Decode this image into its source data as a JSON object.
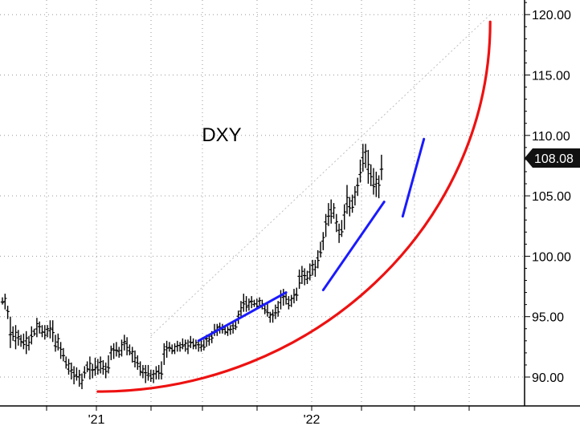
{
  "chart_data": {
    "type": "ohlc",
    "title": "DXY",
    "ylim": [
      88,
      121
    ],
    "y_ticks": [
      "90.00",
      "95.00",
      "100.00",
      "105.00",
      "110.00",
      "115.00",
      "120.00"
    ],
    "x_ticks": [
      "'21",
      "'22"
    ],
    "last_price": 108.08,
    "last_price_label": "108.08",
    "grid": true,
    "series": [
      {
        "bars": [
          [
            96.6,
            96.0
          ],
          [
            96.9,
            95.6
          ],
          [
            95.9,
            94.8
          ],
          [
            95.0,
            92.4
          ],
          [
            94.2,
            93.0
          ],
          [
            94.3,
            92.3
          ],
          [
            93.9,
            92.6
          ],
          [
            93.5,
            92.5
          ],
          [
            93.6,
            92.3
          ],
          [
            93.8,
            91.9
          ],
          [
            93.4,
            92.2
          ],
          [
            94.2,
            92.7
          ],
          [
            94.0,
            93.4
          ],
          [
            94.9,
            93.3
          ],
          [
            94.6,
            93.6
          ],
          [
            94.3,
            93.3
          ],
          [
            94.3,
            93.1
          ],
          [
            94.3,
            93.3
          ],
          [
            94.7,
            93.2
          ],
          [
            94.7,
            92.9
          ],
          [
            93.5,
            92.1
          ],
          [
            93.6,
            92.2
          ],
          [
            92.9,
            91.5
          ],
          [
            92.4,
            91.3
          ],
          [
            91.7,
            90.7
          ],
          [
            91.5,
            90.2
          ],
          [
            91.2,
            89.8
          ],
          [
            90.9,
            89.4
          ],
          [
            90.8,
            89.7
          ],
          [
            90.6,
            89.2
          ],
          [
            90.3,
            89.0
          ],
          [
            90.9,
            89.9
          ],
          [
            91.3,
            90.4
          ],
          [
            91.7,
            89.8
          ],
          [
            91.1,
            89.9
          ],
          [
            91.6,
            90.1
          ],
          [
            91.5,
            90.2
          ],
          [
            91.7,
            90.3
          ],
          [
            91.4,
            90.2
          ],
          [
            91.2,
            89.9
          ],
          [
            91.8,
            90.3
          ],
          [
            92.6,
            91.4
          ],
          [
            92.8,
            91.5
          ],
          [
            92.9,
            91.7
          ],
          [
            92.5,
            91.6
          ],
          [
            93.1,
            91.7
          ],
          [
            93.5,
            92.2
          ],
          [
            93.3,
            91.8
          ],
          [
            92.7,
            91.8
          ],
          [
            92.5,
            91.2
          ],
          [
            92.2,
            90.8
          ],
          [
            91.8,
            90.6
          ],
          [
            91.3,
            90.1
          ],
          [
            91.0,
            89.9
          ],
          [
            91.0,
            89.5
          ],
          [
            91.0,
            89.7
          ],
          [
            90.6,
            89.6
          ],
          [
            90.6,
            89.5
          ],
          [
            90.9,
            89.8
          ],
          [
            91.0,
            89.8
          ],
          [
            91.3,
            89.8
          ],
          [
            92.8,
            91.0
          ],
          [
            93.0,
            91.6
          ],
          [
            92.9,
            92.1
          ],
          [
            92.7,
            91.9
          ],
          [
            92.8,
            91.9
          ],
          [
            93.0,
            92.1
          ],
          [
            92.9,
            92.1
          ],
          [
            93.2,
            92.3
          ],
          [
            93.1,
            92.1
          ],
          [
            93.1,
            91.9
          ],
          [
            93.4,
            92.4
          ],
          [
            93.2,
            92.3
          ],
          [
            93.1,
            92.3
          ],
          [
            93.1,
            92.1
          ],
          [
            93.1,
            92.1
          ],
          [
            93.1,
            92.2
          ],
          [
            93.5,
            92.5
          ],
          [
            93.5,
            92.6
          ],
          [
            93.8,
            92.8
          ],
          [
            94.4,
            93.4
          ],
          [
            94.4,
            93.4
          ],
          [
            94.5,
            93.6
          ],
          [
            94.4,
            93.6
          ],
          [
            94.3,
            93.5
          ],
          [
            94.2,
            93.4
          ],
          [
            94.3,
            93.5
          ],
          [
            94.6,
            93.6
          ],
          [
            94.7,
            93.9
          ],
          [
            95.5,
            94.4
          ],
          [
            96.3,
            95.0
          ],
          [
            96.9,
            95.4
          ],
          [
            96.7,
            95.4
          ],
          [
            96.5,
            95.5
          ],
          [
            96.7,
            95.7
          ],
          [
            96.4,
            95.8
          ],
          [
            96.5,
            95.6
          ],
          [
            96.6,
            95.7
          ],
          [
            96.4,
            95.6
          ],
          [
            96.0,
            95.2
          ],
          [
            96.1,
            95.0
          ],
          [
            95.4,
            94.5
          ],
          [
            95.6,
            94.5
          ],
          [
            96.0,
            94.8
          ],
          [
            96.3,
            95.0
          ],
          [
            97.2,
            95.6
          ],
          [
            97.3,
            95.9
          ],
          [
            97.0,
            96.0
          ],
          [
            96.7,
            95.6
          ],
          [
            96.8,
            95.8
          ],
          [
            97.3,
            96.1
          ],
          [
            97.4,
            96.3
          ],
          [
            98.9,
            97.3
          ],
          [
            99.2,
            97.7
          ],
          [
            99.0,
            97.6
          ],
          [
            98.8,
            97.7
          ],
          [
            99.4,
            98.0
          ],
          [
            99.7,
            98.4
          ],
          [
            99.7,
            98.3
          ],
          [
            100.5,
            99.0
          ],
          [
            101.2,
            99.9
          ],
          [
            102.0,
            100.5
          ],
          [
            103.5,
            101.6
          ],
          [
            104.4,
            102.5
          ],
          [
            104.7,
            102.7
          ],
          [
            104.4,
            103.1
          ],
          [
            103.5,
            102.0
          ],
          [
            102.7,
            101.1
          ],
          [
            103.0,
            101.6
          ],
          [
            104.3,
            102.2
          ],
          [
            105.9,
            103.5
          ],
          [
            104.9,
            103.3
          ],
          [
            105.1,
            103.6
          ],
          [
            105.8,
            104.2
          ],
          [
            106.5,
            105.0
          ],
          [
            108.0,
            106.1
          ],
          [
            109.3,
            107.0
          ],
          [
            109.3,
            107.3
          ],
          [
            108.8,
            106.0
          ],
          [
            107.6,
            105.8
          ],
          [
            107.3,
            105.1
          ],
          [
            107.0,
            104.9
          ],
          [
            106.7,
            104.8
          ],
          [
            108.4,
            106.3
          ]
        ]
      }
    ],
    "overlays": {
      "trendlines": [
        {
          "color": "#1a1aff",
          "from": [
            74,
            93.0
          ],
          "to": [
            107,
            97.0
          ]
        },
        {
          "color": "#1a1aff",
          "from": [
            121,
            97.2
          ],
          "to": [
            144,
            104.5
          ]
        },
        {
          "color": "#1a1aff",
          "from": [
            151,
            103.3
          ],
          "to": [
            159,
            109.7
          ]
        }
      ],
      "dotted_line": {
        "color": "#c0c0c0",
        "from": [
          56,
          93.4
        ],
        "to": [
          184,
          120.0
        ]
      },
      "parabola": {
        "color": "#ee1111",
        "start": [
          36,
          88.8
        ],
        "end": [
          184,
          119.4
        ]
      }
    }
  }
}
